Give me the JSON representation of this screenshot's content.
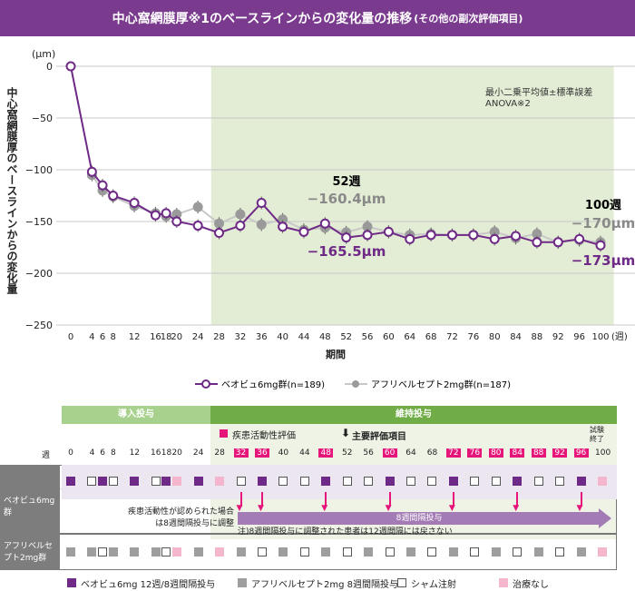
{
  "title": {
    "main": "中心窩網膜厚※1のベースラインからの変化量の推移",
    "sub": "(その他の副次評価項目)"
  },
  "colors": {
    "beovu": "#6e2a86",
    "aflibercept": "#a0a0a0",
    "maintenance_bg": "#e3edd5",
    "induction_bar": "#a9d18e",
    "maintenance_bar": "#70ad47",
    "highlight": "#e6157a"
  },
  "chart_data": {
    "type": "line",
    "unit": "(μm)",
    "ylabel": "中心窩網膜厚のベースラインからの変化量",
    "xlabel": "期間",
    "x_suffix": "(週)",
    "ylim": [
      -250,
      0
    ],
    "yticks": [
      0,
      -50,
      -100,
      -150,
      -200,
      -250
    ],
    "x": [
      0,
      4,
      6,
      8,
      12,
      16,
      18,
      20,
      24,
      28,
      32,
      36,
      40,
      44,
      48,
      52,
      56,
      60,
      64,
      68,
      72,
      76,
      80,
      84,
      88,
      92,
      96,
      100
    ],
    "note": [
      "最小二乗平均値±標準誤差",
      "ANOVA※2"
    ],
    "series": [
      {
        "name": "ベオビュ6mg群(n=189)",
        "values": [
          0,
          -102,
          -115,
          -125,
          -132,
          -144,
          -142,
          -150,
          -154,
          -161,
          -154,
          -132,
          -155,
          -160,
          -152,
          -165.5,
          -163,
          -160,
          -167,
          -163,
          -163,
          -163,
          -167,
          -164,
          -170,
          -170,
          -167,
          -173
        ]
      },
      {
        "name": "アフリベルセプト2mg群(n=187)",
        "values": [
          0,
          -105,
          -120,
          -126,
          -135,
          -142,
          -145,
          -143,
          -136,
          -152,
          -143,
          -153,
          -148,
          -158,
          -156,
          -160.4,
          -155,
          -160,
          -163,
          -162,
          -163,
          -163,
          -160,
          -166,
          -162,
          -170,
          -168,
          -170
        ]
      }
    ],
    "annotations": {
      "w52": "52週",
      "w52_afl": "−160.4μm",
      "w52_beo": "−165.5μm",
      "w100": "100週",
      "w100_afl": "−170μm",
      "w100_beo": "−173μm"
    }
  },
  "schedule": {
    "induction": "導入投与",
    "maintenance": "維持投与",
    "disease_eval": "疾患活動性評価",
    "primary": "主要評価項目",
    "end": "試験\n終了",
    "week_label": "週",
    "weeks": [
      0,
      4,
      6,
      8,
      12,
      16,
      18,
      20,
      24,
      28,
      32,
      36,
      40,
      44,
      48,
      52,
      56,
      60,
      64,
      68,
      72,
      76,
      80,
      84,
      88,
      92,
      96,
      100
    ],
    "highlight_weeks": [
      32,
      36,
      48,
      60,
      72,
      76,
      80,
      84,
      88,
      92,
      96
    ],
    "arrow_weeks": [
      32,
      36,
      48,
      60,
      72,
      84,
      96
    ],
    "beovu_label": "ベオビュ6mg群",
    "afl_label": "アフリベルセプト2mg群",
    "beovu": "PSPSPSPKPKSPSSPSSPSSPSSPSSPK",
    "afl": "GGSGGGSKGKGSGSGSGSGSGSGSGSGK",
    "adjust_note": "疾患活動性が認められた場合は8週間隔投与に調整",
    "q8_label": "8週間隔投与",
    "footnote": "注)8週間隔投与に調整された患者は12週間隔には戻さない",
    "legend": [
      "ベオビュ6mg 12週/8週間隔投与",
      "アフリベルセプト2mg 8週間隔投与",
      "シャム注射",
      "治療なし"
    ]
  }
}
